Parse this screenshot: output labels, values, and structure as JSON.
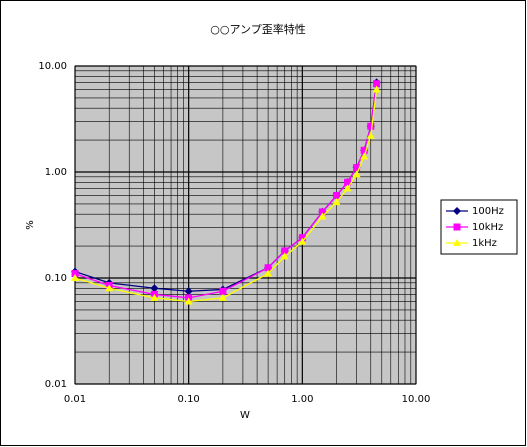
{
  "chart_data": {
    "type": "line",
    "title": "○○アンプ歪率特性",
    "x_label": "W",
    "y_label": "%",
    "log_x": true,
    "log_y": true,
    "grid": true,
    "minor_grid": true,
    "legend": "right",
    "x": [
      0.01,
      0.02,
      0.05,
      0.1,
      0.2,
      0.5,
      0.7,
      1.0,
      1.5,
      2.0,
      2.5,
      3.0,
      3.5,
      4.0,
      4.5
    ],
    "series": [
      {
        "name": "100Hz",
        "color": "#000080",
        "marker": "diamond",
        "values": [
          0.115,
          0.09,
          0.08,
          0.075,
          0.078,
          0.125,
          0.18,
          0.24,
          0.42,
          0.6,
          0.8,
          1.1,
          1.6,
          2.7,
          7.0
        ]
      },
      {
        "name": "10kHz",
        "color": "#ff00ff",
        "marker": "square",
        "values": [
          0.11,
          0.085,
          0.07,
          0.065,
          0.075,
          0.125,
          0.18,
          0.24,
          0.42,
          0.6,
          0.8,
          1.1,
          1.6,
          2.7,
          6.8
        ]
      },
      {
        "name": "1kHz",
        "color": "#ffff00",
        "marker": "triangle",
        "values": [
          0.1,
          0.08,
          0.065,
          0.06,
          0.065,
          0.11,
          0.16,
          0.22,
          0.38,
          0.52,
          0.7,
          0.95,
          1.4,
          2.2,
          6.0
        ]
      }
    ],
    "xlim": [
      0.01,
      10
    ],
    "ylim": [
      0.01,
      10
    ],
    "xticks": [
      {
        "value": 0.01,
        "label": "0.01"
      },
      {
        "value": 0.1,
        "label": "0.10"
      },
      {
        "value": 1,
        "label": "1.00"
      },
      {
        "value": 10,
        "label": "10.00"
      }
    ],
    "yticks": [
      {
        "value": 0.01,
        "label": "0.01"
      },
      {
        "value": 0.1,
        "label": "0.10"
      },
      {
        "value": 1,
        "label": "1.00"
      },
      {
        "value": 10,
        "label": "10.00"
      }
    ]
  }
}
